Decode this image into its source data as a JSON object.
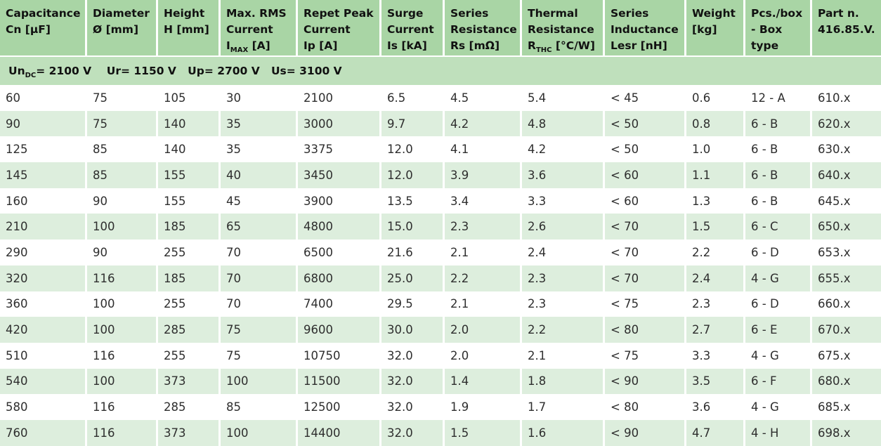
{
  "columns": [
    {
      "lines": [
        "Capacitance",
        "Cn [µF]"
      ]
    },
    {
      "lines": [
        "Diameter",
        "Ø  [mm]"
      ]
    },
    {
      "lines": [
        "Height",
        "H  [mm]"
      ]
    },
    {
      "lines": [
        "Max. RMS",
        "Current"
      ],
      "sub_pre": "I",
      "sub": "MAX",
      "sub_post": " [A]"
    },
    {
      "lines": [
        "Repet Peak",
        "Current",
        "Ip [A]"
      ]
    },
    {
      "lines": [
        "Surge",
        "Current",
        "Is [kA]"
      ]
    },
    {
      "lines": [
        "Series",
        "Resistance",
        "Rs [mΩ]"
      ]
    },
    {
      "lines": [
        "Thermal",
        "Resistance"
      ],
      "sub_pre": "R",
      "sub": "THC",
      "sub_post": " [°C/W]"
    },
    {
      "lines": [
        "Series",
        "Inductance",
        "Lesr  [nH]"
      ]
    },
    {
      "lines": [
        "Weight",
        "[kg]"
      ]
    },
    {
      "lines": [
        "Pcs./box",
        "- Box",
        "type"
      ]
    },
    {
      "lines": [
        "Part n.",
        "416.85.V."
      ]
    }
  ],
  "conditions": {
    "un_pre": "Un",
    "un_sub": "DC",
    "un_post": "= 2100 V",
    "ur": "Ur= 1150 V",
    "up": "Up= 2700 V",
    "us": "Us= 3100 V"
  },
  "rows": [
    [
      "60",
      "75",
      "105",
      "30",
      "2100",
      "6.5",
      "4.5",
      "5.4",
      "< 45",
      "0.6",
      "12 - A",
      "610.x"
    ],
    [
      "90",
      "75",
      "140",
      "35",
      "3000",
      "9.7",
      "4.2",
      "4.8",
      "< 50",
      "0.8",
      "6 - B",
      "620.x"
    ],
    [
      "125",
      "85",
      "140",
      "35",
      "3375",
      "12.0",
      "4.1",
      "4.2",
      "< 50",
      "1.0",
      "6 - B",
      "630.x"
    ],
    [
      "145",
      "85",
      "155",
      "40",
      "3450",
      "12.0",
      "3.9",
      "3.6",
      "< 60",
      "1.1",
      "6 - B",
      "640.x"
    ],
    [
      "160",
      "90",
      "155",
      "45",
      "3900",
      "13.5",
      "3.4",
      "3.3",
      "< 60",
      "1.3",
      "6 - B",
      "645.x"
    ],
    [
      "210",
      "100",
      "185",
      "65",
      "4800",
      "15.0",
      "2.3",
      "2.6",
      "< 70",
      "1.5",
      "6 - C",
      "650.x"
    ],
    [
      "290",
      "90",
      "255",
      "70",
      "6500",
      "21.6",
      "2.1",
      "2.4",
      "< 70",
      "2.2",
      "6 - D",
      "653.x"
    ],
    [
      "320",
      "116",
      "185",
      "70",
      "6800",
      "25.0",
      "2.2",
      "2.3",
      "< 70",
      "2.4",
      "4 - G",
      "655.x"
    ],
    [
      "360",
      "100",
      "255",
      "70",
      "7400",
      "29.5",
      "2.1",
      "2.3",
      "< 75",
      "2.3",
      "6 - D",
      "660.x"
    ],
    [
      "420",
      "100",
      "285",
      "75",
      "9600",
      "30.0",
      "2.0",
      "2.2",
      "< 80",
      "2.7",
      "6 - E",
      "670.x"
    ],
    [
      "510",
      "116",
      "255",
      "75",
      "10750",
      "32.0",
      "2.0",
      "2.1",
      "< 75",
      "3.3",
      "4 - G",
      "675.x"
    ],
    [
      "540",
      "100",
      "373",
      "100",
      "11500",
      "32.0",
      "1.4",
      "1.8",
      "< 90",
      "3.5",
      "6 - F",
      "680.x"
    ],
    [
      "580",
      "116",
      "285",
      "85",
      "12500",
      "32.0",
      "1.9",
      "1.7",
      "< 80",
      "3.6",
      "4 - G",
      "685.x"
    ],
    [
      "760",
      "116",
      "373",
      "100",
      "14400",
      "32.0",
      "1.5",
      "1.6",
      "< 90",
      "4.7",
      "4 - H",
      "698.x"
    ]
  ]
}
